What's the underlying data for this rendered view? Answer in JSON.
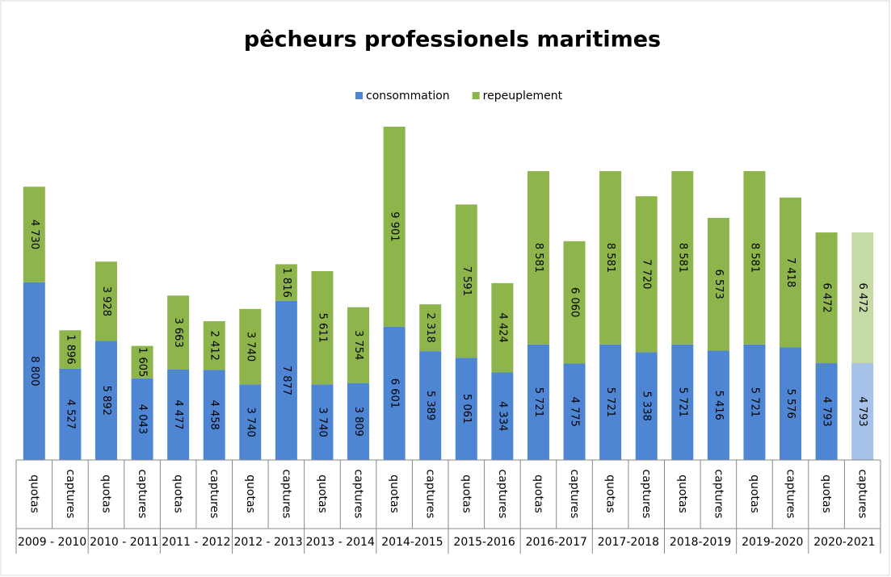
{
  "chart_data": {
    "type": "stacked-bar",
    "title": "pêcheurs professionels maritimes",
    "categories": [
      "quotas",
      "captures",
      "quotas",
      "captures",
      "quotas",
      "captures",
      "quotas",
      "captures",
      "quotas",
      "captures",
      "quotas",
      "captures",
      "quotas",
      "captures",
      "quotas",
      "captures",
      "quotas",
      "captures",
      "quotas",
      "captures",
      "quotas",
      "captures",
      "quotas",
      "captures"
    ],
    "groups": [
      "2009 - 2010",
      "2010 - 2011",
      "2011 - 2012",
      "2012 - 2013",
      "2013 - 2014",
      "2014-2015",
      "2015-2016",
      "2016-2017",
      "2017-2018",
      "2018-2019",
      "2019-2020",
      "2020-2021"
    ],
    "series": [
      {
        "name": "consommation",
        "color": "#4f86d4",
        "values": [
          8800,
          4527,
          5892,
          4043,
          4477,
          4458,
          3740,
          7877,
          3740,
          3809,
          6601,
          5389,
          5061,
          4334,
          5721,
          4775,
          5721,
          5338,
          5721,
          5416,
          5721,
          5576,
          4793,
          4793
        ],
        "value_labels": [
          "8 800",
          "4 527",
          "5 892",
          "4 043",
          "4 477",
          "4 458",
          "3 740",
          "7 877",
          "3 740",
          "3 809",
          "6 601",
          "5 389",
          "5 061",
          "4 334",
          "5 721",
          "4 775",
          "5 721",
          "5 338",
          "5 721",
          "5 416",
          "5 721",
          "5 576",
          "4 793",
          "4 793"
        ]
      },
      {
        "name": "repeuplement",
        "color": "#8db54b",
        "values": [
          4730,
          1896,
          3928,
          1605,
          3663,
          2412,
          3740,
          1816,
          5611,
          3754,
          9901,
          2318,
          7591,
          4424,
          8581,
          6060,
          8581,
          7720,
          8581,
          6573,
          8581,
          7418,
          6472,
          6472
        ],
        "value_labels": [
          "4 730",
          "1 896",
          "3 928",
          "1 605",
          "3 663",
          "2 412",
          "3 740",
          "1 816",
          "5 611",
          "3 754",
          "9 901",
          "2 318",
          "7 591",
          "4 424",
          "8 581",
          "6 060",
          "8 581",
          "7 720",
          "8 581",
          "6 573",
          "8 581",
          "7 418",
          "6 472",
          "6 472"
        ]
      }
    ],
    "legend": "top"
  }
}
